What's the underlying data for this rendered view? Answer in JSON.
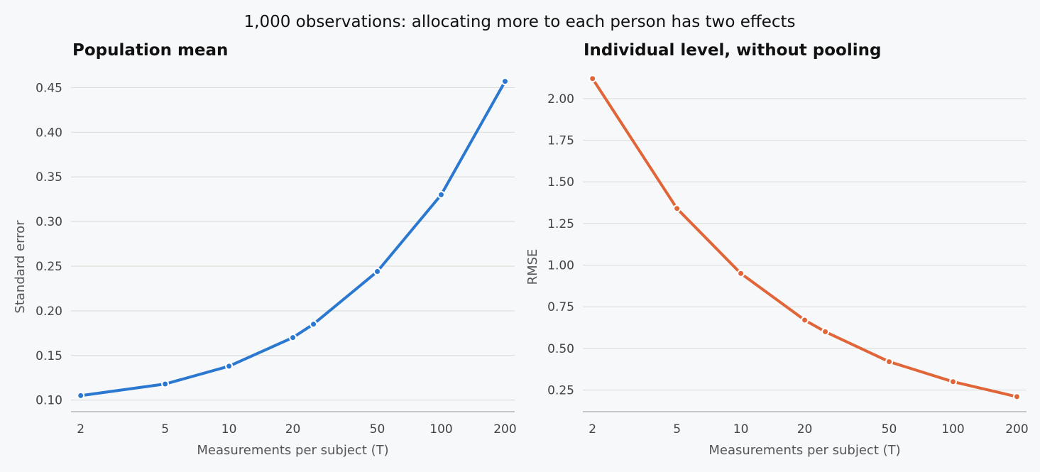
{
  "suptitle": "1,000 observations: allocating more to each person has two effects",
  "chart_data": [
    {
      "type": "line",
      "title": "Population mean",
      "xlabel": "Measurements per subject (T)",
      "ylabel": "Standard error",
      "xscale": "log",
      "xticks": [
        2,
        5,
        10,
        20,
        50,
        100,
        200
      ],
      "yticks": [
        "0.10",
        "0.15",
        "0.20",
        "0.25",
        "0.30",
        "0.35",
        "0.40",
        "0.45"
      ],
      "ylim": [
        0.087,
        0.475
      ],
      "grid": "horizontal",
      "color": "#2b78d0",
      "x": [
        2,
        5,
        10,
        20,
        25,
        50,
        100,
        200
      ],
      "y": [
        0.105,
        0.118,
        0.138,
        0.17,
        0.185,
        0.244,
        0.33,
        0.457
      ]
    },
    {
      "type": "line",
      "title": "Individual level, without pooling",
      "xlabel": "Measurements per subject (T)",
      "ylabel": "RMSE",
      "xscale": "log",
      "xticks": [
        2,
        5,
        10,
        20,
        50,
        100,
        200
      ],
      "yticks": [
        "0.25",
        "0.50",
        "0.75",
        "1.00",
        "1.25",
        "1.50",
        "1.75",
        "2.00"
      ],
      "ylim": [
        0.12,
        2.2
      ],
      "grid": "horizontal",
      "color": "#e0663a",
      "x": [
        2,
        5,
        10,
        20,
        25,
        50,
        100,
        200
      ],
      "y": [
        2.12,
        1.34,
        0.95,
        0.67,
        0.6,
        0.42,
        0.3,
        0.21
      ]
    }
  ]
}
